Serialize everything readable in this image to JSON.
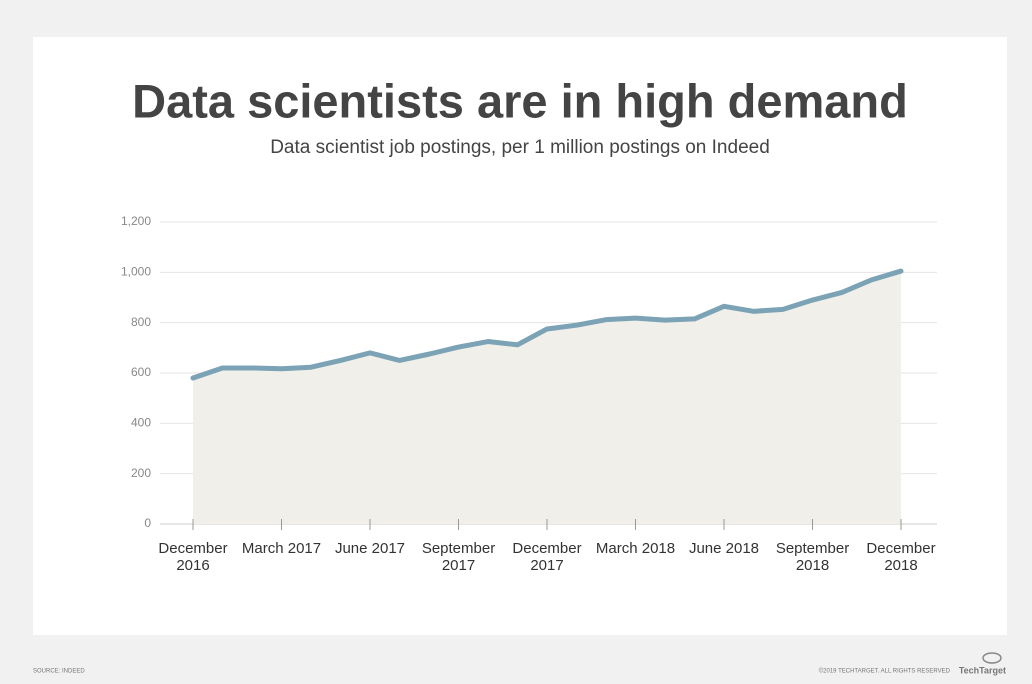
{
  "chart_data": {
    "type": "area",
    "title": "Data scientists are in high demand",
    "subtitle": "Data scientist job postings, per 1 million postings on Indeed",
    "categories": [
      "December 2016",
      null,
      null,
      "March 2017",
      null,
      null,
      "June 2017",
      null,
      null,
      "September 2017",
      null,
      null,
      "December 2017",
      null,
      null,
      "March 2018",
      null,
      null,
      "June 2018",
      null,
      null,
      "September 2018",
      null,
      null,
      "December 2018"
    ],
    "series": [
      {
        "name": "Job postings",
        "color": "#7ba3b5",
        "fill": "#f0efe9",
        "values": [
          580,
          620,
          620,
          617,
          623,
          650,
          680,
          650,
          675,
          703,
          725,
          712,
          775,
          790,
          812,
          818,
          810,
          815,
          865,
          845,
          853,
          890,
          920,
          970,
          1005
        ]
      }
    ],
    "ylim": [
      0,
      1200
    ],
    "yticks": [
      0,
      200,
      400,
      600,
      800,
      {
        "value": 1000,
        "label": "1,000"
      },
      {
        "value": 1200,
        "label": "1,200"
      }
    ],
    "grid": true,
    "source": "SOURCE: INDEED",
    "copyright": "©2019 TECHTARGET. ALL RIGHTS RESERVED",
    "brand": "TechTarget"
  }
}
